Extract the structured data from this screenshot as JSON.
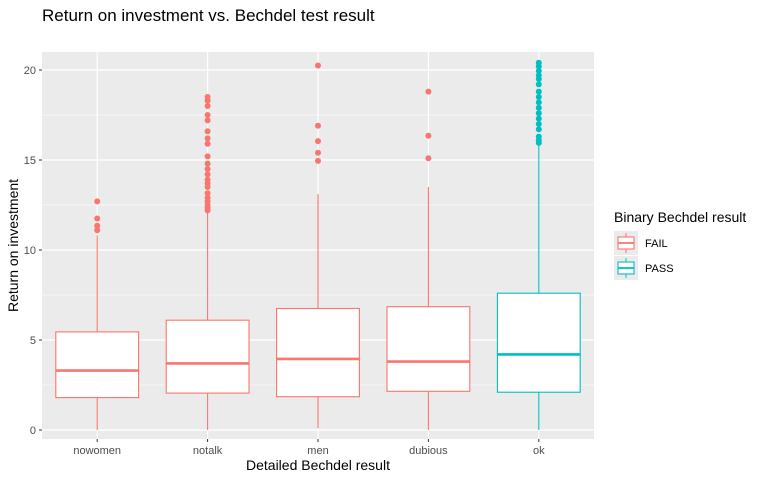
{
  "chart_data": {
    "type": "boxplot",
    "title": "Return on investment vs. Bechdel test result",
    "subtitle": "",
    "xlabel": "Detailed Bechdel result",
    "ylabel": "Return on investment",
    "categories": [
      "nowomen",
      "notalk",
      "men",
      "dubious",
      "ok"
    ],
    "ylim": [
      -0.5,
      21
    ],
    "yticks": [
      0,
      5,
      10,
      15,
      20
    ],
    "grid": true,
    "legend": {
      "title": "Binary Bechdel result",
      "position": "right",
      "entries": [
        {
          "label": "FAIL",
          "color": "#F8766D"
        },
        {
          "label": "PASS",
          "color": "#00BFC4"
        }
      ]
    },
    "boxes": [
      {
        "category": "nowomen",
        "group": "FAIL",
        "min": 0.0,
        "q1": 1.8,
        "median": 3.3,
        "q3": 5.45,
        "max": 10.8,
        "outliers": [
          11.1,
          11.35,
          11.75,
          12.7
        ]
      },
      {
        "category": "notalk",
        "group": "FAIL",
        "min": 0.0,
        "q1": 2.05,
        "median": 3.7,
        "q3": 6.1,
        "max": 12.1,
        "outliers": [
          12.2,
          12.35,
          12.5,
          12.7,
          12.9,
          13.15,
          13.5,
          13.7,
          13.9,
          14.2,
          14.5,
          14.8,
          15.2,
          15.9,
          16.2,
          16.6,
          17.2,
          17.5,
          18.0,
          18.3,
          18.5
        ]
      },
      {
        "category": "men",
        "group": "FAIL",
        "min": 0.1,
        "q1": 1.85,
        "median": 3.95,
        "q3": 6.75,
        "max": 13.1,
        "outliers": [
          14.95,
          15.4,
          16.05,
          16.9,
          20.25
        ]
      },
      {
        "category": "dubious",
        "group": "FAIL",
        "min": 0.0,
        "q1": 2.15,
        "median": 3.8,
        "q3": 6.85,
        "max": 13.5,
        "outliers": [
          15.1,
          16.35,
          18.8
        ]
      },
      {
        "category": "ok",
        "group": "PASS",
        "min": 0.0,
        "q1": 2.1,
        "median": 4.2,
        "q3": 7.6,
        "max": 15.8,
        "outliers": [
          15.95,
          16.1,
          16.3,
          16.7,
          17.0,
          17.3,
          17.6,
          17.9,
          18.2,
          18.5,
          18.8,
          19.2,
          19.5,
          19.7,
          19.95,
          20.2,
          20.4
        ]
      }
    ]
  },
  "colors": {
    "fail": "#F8766D",
    "pass": "#00BFC4",
    "panel": "#EBEBEB",
    "grid": "#FFFFFF"
  }
}
